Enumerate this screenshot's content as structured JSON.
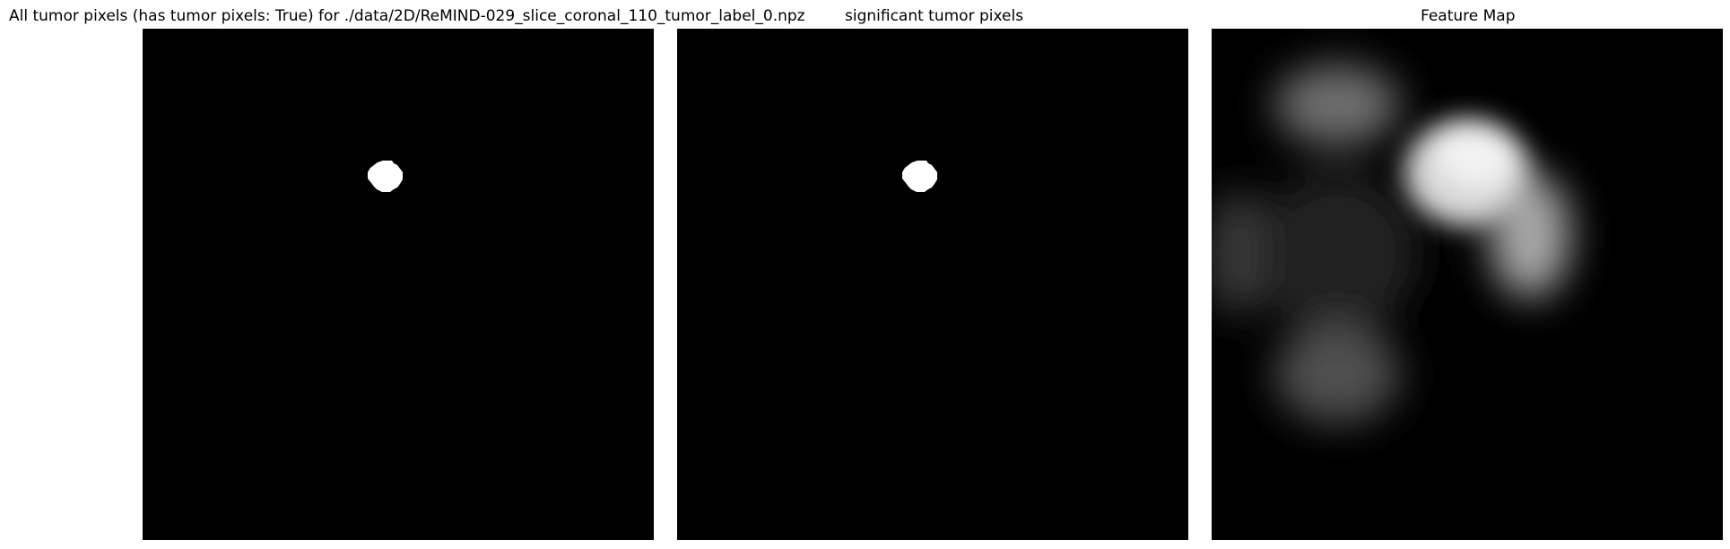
{
  "figure": {
    "panels": [
      {
        "title": "All tumor pixels (has tumor pixels: True) for ./data/2D/ReMIND-029_slice_coronal_110_tumor_label_0.npz",
        "image": "binary tumor mask (white disc on black)"
      },
      {
        "title": "significant tumor pixels",
        "image": "binary significant tumor mask (white disc on black)"
      },
      {
        "title": "Feature Map",
        "image": "grayscale blurred feature activation map"
      }
    ],
    "colors": {
      "background": "#000000",
      "mask": "#ffffff"
    }
  }
}
